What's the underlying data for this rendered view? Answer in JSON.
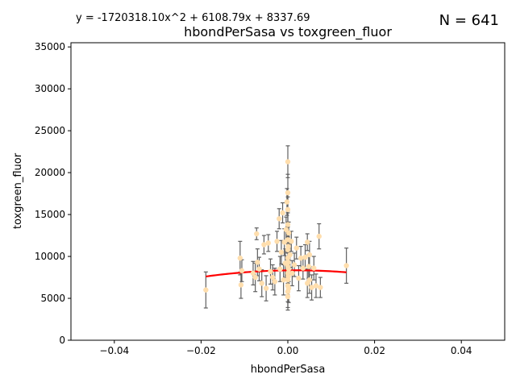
{
  "chart_data": {
    "type": "scatter",
    "title": "hbondPerSasa vs toxgreen_fluor",
    "xlabel": "hbondPerSasa",
    "ylabel": "toxgreen_fluor",
    "equation": "y = -1720318.10x^2 + 6108.79x + 8337.69",
    "n_label": "N = 641",
    "xlim": [
      -0.05,
      0.05
    ],
    "ylim": [
      0,
      35500
    ],
    "xticks": [
      -0.04,
      -0.02,
      0.0,
      0.02,
      0.04
    ],
    "xtick_labels": [
      "−0.04",
      "−0.02",
      "0.00",
      "0.02",
      "0.04"
    ],
    "yticks": [
      0,
      5000,
      10000,
      15000,
      20000,
      25000,
      30000,
      35000
    ],
    "ytick_labels": [
      "0",
      "5000",
      "10000",
      "15000",
      "20000",
      "25000",
      "30000",
      "35000"
    ],
    "fit": {
      "a": -1720318.1,
      "b": 6108.79,
      "c": 8337.69,
      "x_range": [
        -0.0189,
        0.0135
      ],
      "color": "#ff0000"
    },
    "point_color": "#ffdead",
    "errorbar_color": "#606060",
    "points": [
      {
        "x": -0.0189,
        "y": 6000,
        "err": 2150
      },
      {
        "x": -0.011,
        "y": 9800,
        "err": 2000
      },
      {
        "x": -0.0108,
        "y": 6600,
        "err": 1600
      },
      {
        "x": -0.0106,
        "y": 8300,
        "err": 1300
      },
      {
        "x": -0.008,
        "y": 8000,
        "err": 1400
      },
      {
        "x": -0.0075,
        "y": 7500,
        "err": 1700
      },
      {
        "x": -0.0072,
        "y": 12700,
        "err": 700
      },
      {
        "x": -0.007,
        "y": 9300,
        "err": 1600
      },
      {
        "x": -0.0066,
        "y": 8500,
        "err": 1400
      },
      {
        "x": -0.006,
        "y": 6800,
        "err": 1600
      },
      {
        "x": -0.0055,
        "y": 11400,
        "err": 1100
      },
      {
        "x": -0.005,
        "y": 6200,
        "err": 1500
      },
      {
        "x": -0.0045,
        "y": 11600,
        "err": 1000
      },
      {
        "x": -0.004,
        "y": 8200,
        "err": 1500
      },
      {
        "x": -0.0035,
        "y": 7500,
        "err": 1500
      },
      {
        "x": -0.003,
        "y": 7000,
        "err": 1600
      },
      {
        "x": -0.0025,
        "y": 11800,
        "err": 1200
      },
      {
        "x": -0.002,
        "y": 14500,
        "err": 1200
      },
      {
        "x": -0.0018,
        "y": 8500,
        "err": 1500
      },
      {
        "x": -0.0015,
        "y": 10500,
        "err": 1400
      },
      {
        "x": -0.0012,
        "y": 15200,
        "err": 1200
      },
      {
        "x": -0.001,
        "y": 7200,
        "err": 1800
      },
      {
        "x": -0.0008,
        "y": 11700,
        "err": 1600
      },
      {
        "x": -0.0006,
        "y": 9200,
        "err": 1700
      },
      {
        "x": -0.0004,
        "y": 13200,
        "err": 1500
      },
      {
        "x": -0.0002,
        "y": 16500,
        "err": 1600
      },
      {
        "x": 0.0,
        "y": 21300,
        "err": 1900
      },
      {
        "x": 0.0,
        "y": 17600,
        "err": 2200
      },
      {
        "x": 0.0,
        "y": 15600,
        "err": 1500
      },
      {
        "x": 0.0,
        "y": 13800,
        "err": 1400
      },
      {
        "x": 0.0,
        "y": 12000,
        "err": 1500
      },
      {
        "x": 0.0,
        "y": 10800,
        "err": 1500
      },
      {
        "x": 0.0,
        "y": 9800,
        "err": 1700
      },
      {
        "x": 0.0,
        "y": 8800,
        "err": 1600
      },
      {
        "x": 0.0,
        "y": 8000,
        "err": 1600
      },
      {
        "x": 0.0,
        "y": 7200,
        "err": 1800
      },
      {
        "x": 0.0,
        "y": 6500,
        "err": 1900
      },
      {
        "x": 0.0,
        "y": 5800,
        "err": 1900
      },
      {
        "x": 0.0,
        "y": 5200,
        "err": 1600
      },
      {
        "x": 0.0001,
        "y": 11200,
        "err": 1400
      },
      {
        "x": 0.0001,
        "y": 9300,
        "err": 1500
      },
      {
        "x": 0.0001,
        "y": 7600,
        "err": 1600
      },
      {
        "x": 0.0002,
        "y": 12800,
        "err": 1300
      },
      {
        "x": 0.0002,
        "y": 8500,
        "err": 1500
      },
      {
        "x": 0.0002,
        "y": 6200,
        "err": 1700
      },
      {
        "x": 0.0005,
        "y": 10200,
        "err": 1500
      },
      {
        "x": 0.0008,
        "y": 11800,
        "err": 1200
      },
      {
        "x": 0.001,
        "y": 8000,
        "err": 1500
      },
      {
        "x": 0.0015,
        "y": 9000,
        "err": 1400
      },
      {
        "x": 0.002,
        "y": 11000,
        "err": 1300
      },
      {
        "x": 0.0025,
        "y": 7400,
        "err": 1500
      },
      {
        "x": 0.003,
        "y": 9800,
        "err": 1400
      },
      {
        "x": 0.0035,
        "y": 8600,
        "err": 1300
      },
      {
        "x": 0.004,
        "y": 9900,
        "err": 1500
      },
      {
        "x": 0.0045,
        "y": 11700,
        "err": 1000
      },
      {
        "x": 0.0045,
        "y": 6800,
        "err": 1700
      },
      {
        "x": 0.0048,
        "y": 8800,
        "err": 1400
      },
      {
        "x": 0.005,
        "y": 10200,
        "err": 1600
      },
      {
        "x": 0.005,
        "y": 7200,
        "err": 1600
      },
      {
        "x": 0.0055,
        "y": 6300,
        "err": 1500
      },
      {
        "x": 0.006,
        "y": 8600,
        "err": 1400
      },
      {
        "x": 0.0065,
        "y": 6500,
        "err": 1400
      },
      {
        "x": 0.0072,
        "y": 12400,
        "err": 1500
      },
      {
        "x": 0.0075,
        "y": 6300,
        "err": 1200
      },
      {
        "x": 0.0135,
        "y": 8900,
        "err": 2100
      }
    ]
  }
}
